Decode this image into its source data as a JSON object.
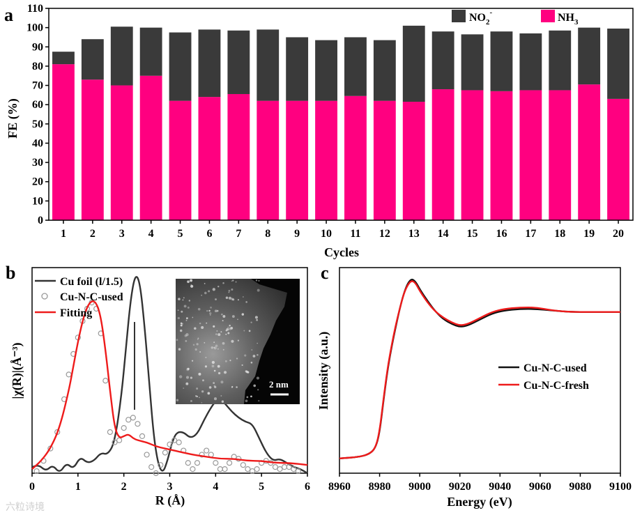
{
  "chart_data": [
    {
      "panel": "a",
      "type": "bar",
      "stacked": true,
      "xlabel": "Cycles",
      "ylabel": "FE (%)",
      "ylim": [
        0,
        110
      ],
      "yticks": [
        0,
        10,
        20,
        30,
        40,
        50,
        60,
        70,
        80,
        90,
        100,
        110
      ],
      "categories": [
        "1",
        "2",
        "3",
        "4",
        "5",
        "6",
        "7",
        "8",
        "9",
        "10",
        "11",
        "12",
        "13",
        "14",
        "15",
        "16",
        "17",
        "18",
        "19",
        "20"
      ],
      "series": [
        {
          "name": "NH3",
          "legend_main": "NH",
          "legend_sub": "3",
          "color": "#ff0080",
          "values": [
            81,
            73,
            70,
            75,
            62,
            64,
            65.5,
            62,
            62,
            62,
            64.5,
            62,
            61.5,
            68,
            67.5,
            67,
            67.5,
            67.5,
            70.5,
            63
          ]
        },
        {
          "name": "NO2-",
          "legend_main": "NO",
          "legend_sub": "2",
          "legend_sup": "-",
          "color": "#3a3a3a",
          "values": [
            6.5,
            21,
            30.5,
            25,
            35.5,
            35,
            33,
            37,
            33,
            31.5,
            30.5,
            31.5,
            39.5,
            30,
            29,
            31,
            29.5,
            31,
            29.5,
            36.5
          ]
        }
      ]
    },
    {
      "panel": "b",
      "type": "line",
      "xlabel": "R (Å)",
      "ylabel": "|χ(R)|(Å⁻³)",
      "xlim": [
        0,
        6
      ],
      "ylim": [
        0,
        1
      ],
      "xticks": [
        0,
        1,
        2,
        3,
        4,
        5,
        6
      ],
      "inset_scale_label": "2 nm",
      "series": [
        {
          "name": "Cu foil (l/1.5)",
          "color": "#333333",
          "style": "line",
          "x": [
            0,
            0.15,
            0.3,
            0.45,
            0.6,
            0.75,
            0.9,
            1.05,
            1.2,
            1.35,
            1.5,
            1.65,
            1.8,
            1.95,
            2.05,
            2.15,
            2.25,
            2.35,
            2.45,
            2.55,
            2.65,
            2.75,
            2.85,
            2.95,
            3.05,
            3.15,
            3.3,
            3.45,
            3.6,
            3.75,
            3.9,
            4.0,
            4.1,
            4.2,
            4.35,
            4.5,
            4.65,
            4.8,
            4.95,
            5.1,
            5.25,
            5.4,
            5.55,
            5.7,
            5.85,
            6.0
          ],
          "y": [
            0.03,
            0.04,
            0.01,
            0.04,
            0.0,
            0.05,
            0.02,
            0.08,
            0.05,
            0.06,
            0.1,
            0.09,
            0.15,
            0.38,
            0.62,
            0.85,
            0.97,
            0.93,
            0.72,
            0.45,
            0.18,
            0.04,
            0.0,
            0.06,
            0.15,
            0.2,
            0.2,
            0.17,
            0.19,
            0.26,
            0.32,
            0.35,
            0.36,
            0.34,
            0.3,
            0.27,
            0.25,
            0.24,
            0.17,
            0.1,
            0.06,
            0.07,
            0.05,
            0.03,
            0.02,
            0.0
          ]
        },
        {
          "name": "Cu-N-C-used",
          "color": "#999999",
          "style": "circles",
          "x": [
            0.1,
            0.25,
            0.4,
            0.55,
            0.7,
            0.8,
            0.9,
            1.0,
            1.1,
            1.2,
            1.3,
            1.4,
            1.5,
            1.6,
            1.7,
            1.8,
            1.9,
            2.0,
            2.1,
            2.2,
            2.3,
            2.4,
            2.5,
            2.6,
            2.7,
            2.8,
            2.9,
            3.0,
            3.1,
            3.2,
            3.3,
            3.4,
            3.5,
            3.6,
            3.7,
            3.8,
            3.9,
            4.0,
            4.1,
            4.2,
            4.3,
            4.4,
            4.5,
            4.6,
            4.7,
            4.8,
            4.9,
            5.0,
            5.1,
            5.2,
            5.3,
            5.4,
            5.5,
            5.6,
            5.7,
            5.8
          ],
          "y": [
            0.01,
            0.06,
            0.12,
            0.2,
            0.36,
            0.48,
            0.58,
            0.66,
            0.74,
            0.8,
            0.83,
            0.8,
            0.68,
            0.45,
            0.2,
            0.15,
            0.16,
            0.22,
            0.26,
            0.27,
            0.24,
            0.18,
            0.09,
            0.03,
            0.0,
            0.04,
            0.1,
            0.14,
            0.16,
            0.15,
            0.11,
            0.05,
            0.02,
            0.05,
            0.09,
            0.11,
            0.09,
            0.05,
            0.02,
            0.02,
            0.05,
            0.08,
            0.07,
            0.04,
            0.02,
            0.01,
            0.02,
            0.05,
            0.06,
            0.05,
            0.03,
            0.02,
            0.03,
            0.03,
            0.02,
            0.01
          ]
        },
        {
          "name": "Fitting",
          "color": "#ee1b1b",
          "style": "line",
          "x": [
            0.0,
            0.2,
            0.4,
            0.6,
            0.8,
            0.9,
            1.0,
            1.1,
            1.2,
            1.3,
            1.4,
            1.5,
            1.6,
            1.7,
            1.8,
            1.9,
            2.0,
            2.1,
            2.2,
            2.3,
            2.5,
            2.7,
            2.9,
            3.1,
            3.3,
            3.5,
            3.8,
            4.1,
            4.4,
            4.7,
            5.0,
            5.3,
            5.6,
            6.0
          ],
          "y": [
            0.02,
            0.06,
            0.12,
            0.22,
            0.4,
            0.52,
            0.64,
            0.74,
            0.81,
            0.84,
            0.83,
            0.76,
            0.6,
            0.4,
            0.22,
            0.17,
            0.18,
            0.19,
            0.17,
            0.16,
            0.15,
            0.13,
            0.12,
            0.11,
            0.1,
            0.09,
            0.08,
            0.07,
            0.07,
            0.06,
            0.06,
            0.05,
            0.05,
            0.04
          ]
        }
      ]
    },
    {
      "panel": "c",
      "type": "line",
      "xlabel": "Energy (eV)",
      "ylabel": "Intensity (a.u.)",
      "xlim": [
        8960,
        9100
      ],
      "xticks": [
        8960,
        8980,
        9000,
        9020,
        9040,
        9060,
        9080,
        9100
      ],
      "ylim": [
        0,
        1.2
      ],
      "series": [
        {
          "name": "Cu-N-C-used",
          "color": "#111111",
          "x": [
            8960,
            8970,
            8975,
            8978,
            8980,
            8982,
            8984,
            8986,
            8988,
            8990,
            8992,
            8994,
            8996,
            8998,
            9000,
            9004,
            9008,
            9012,
            9016,
            9020,
            9024,
            9030,
            9036,
            9042,
            9050,
            9058,
            9066,
            9075,
            9085,
            9100
          ],
          "y": [
            0.01,
            0.02,
            0.04,
            0.08,
            0.18,
            0.4,
            0.6,
            0.75,
            0.88,
            1.0,
            1.1,
            1.17,
            1.2,
            1.18,
            1.13,
            1.05,
            0.98,
            0.93,
            0.9,
            0.88,
            0.89,
            0.93,
            0.97,
            0.99,
            1.0,
            1.0,
            0.99,
            0.98,
            0.98,
            0.98
          ]
        },
        {
          "name": "Cu-N-C-fresh",
          "color": "#ee1b1b",
          "x": [
            8960,
            8970,
            8975,
            8978,
            8980,
            8982,
            8984,
            8986,
            8988,
            8990,
            8992,
            8994,
            8996,
            8998,
            9000,
            9004,
            9008,
            9012,
            9016,
            9020,
            9024,
            9030,
            9036,
            9042,
            9050,
            9058,
            9066,
            9075,
            9085,
            9100
          ],
          "y": [
            0.01,
            0.02,
            0.04,
            0.08,
            0.19,
            0.41,
            0.61,
            0.76,
            0.89,
            1.0,
            1.1,
            1.16,
            1.19,
            1.17,
            1.12,
            1.04,
            0.98,
            0.94,
            0.91,
            0.89,
            0.9,
            0.94,
            0.98,
            1.0,
            1.01,
            1.01,
            0.99,
            0.98,
            0.98,
            0.98
          ]
        }
      ]
    }
  ],
  "panel_labels": {
    "a": "a",
    "b": "b",
    "c": "c"
  },
  "watermark": "六粒诗境"
}
